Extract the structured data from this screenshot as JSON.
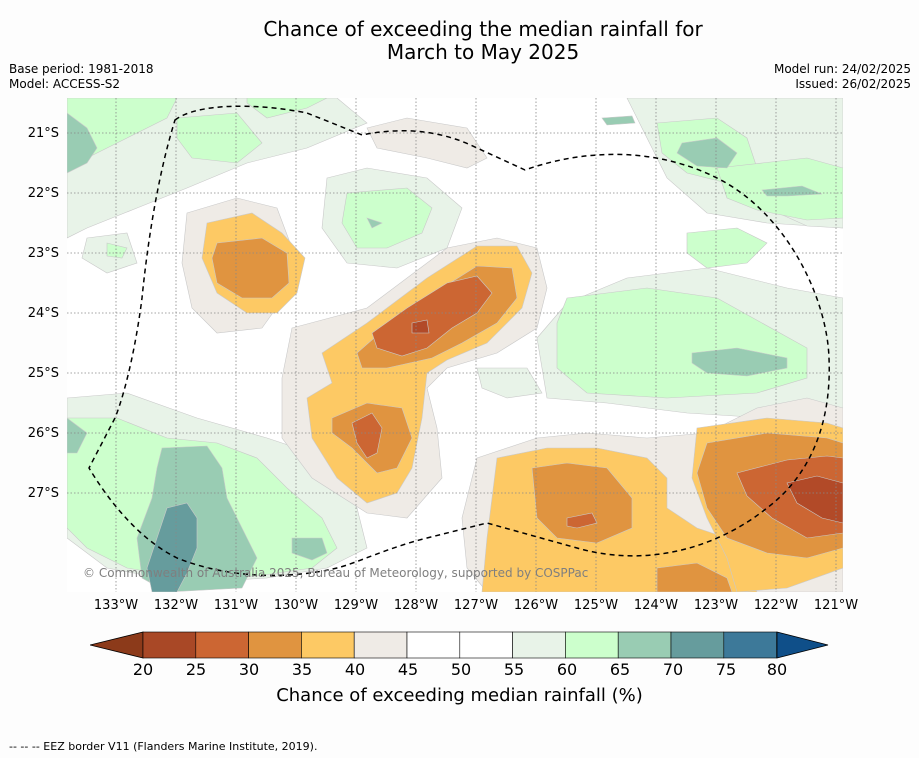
{
  "header": {
    "title_line1": "Chance of exceeding the median rainfall for",
    "title_line2": "March to May 2025",
    "base_period": "Base period: 1981-2018",
    "model": "Model: ACCESS-S2",
    "model_run": "Model run: 24/02/2025",
    "issued": "Issued: 26/02/2025"
  },
  "map": {
    "lat_labels": [
      "21°S",
      "22°S",
      "23°S",
      "24°S",
      "25°S",
      "26°S",
      "27°S"
    ],
    "lon_labels": [
      "133°W",
      "132°W",
      "131°W",
      "130°W",
      "129°W",
      "128°W",
      "127°W",
      "126°W",
      "125°W",
      "124°W",
      "123°W",
      "122°W",
      "121°W"
    ],
    "copyright": "© Commonwealth of Australia 2025, Bureau of Meteorology, supported by COSPPac",
    "colors": {
      "c20": "#a0401e",
      "c25": "#b24a28",
      "c30": "#cc6633",
      "c35": "#e09440",
      "c40": "#fdc964",
      "c45": "#efebe6",
      "c55": "#e8f3e8",
      "c60": "#ccffcc",
      "c65": "#99ccb3",
      "c70": "#669c9d",
      "c75": "#3d7999",
      "c80": "#0f4f89",
      "eez_line": "#000000"
    }
  },
  "colorbar": {
    "ticks": [
      "20",
      "25",
      "30",
      "35",
      "40",
      "45",
      "50",
      "55",
      "60",
      "65",
      "70",
      "75",
      "80"
    ],
    "colors": [
      "#a94826",
      "#cc6633",
      "#e09440",
      "#fdc964",
      "#efebe6",
      "#ffffff",
      "#ffffff",
      "#e8f3e8",
      "#ccffcc",
      "#99ccb3",
      "#669c9d",
      "#3d7999"
    ],
    "under_color": "#8c3a1a",
    "over_color": "#0f4f89",
    "label": "Chance of exceeding median rainfall (%)"
  },
  "footer": {
    "legend": "--  --  -- EEZ border V11 (Flanders Marine Institute, 2019)."
  }
}
